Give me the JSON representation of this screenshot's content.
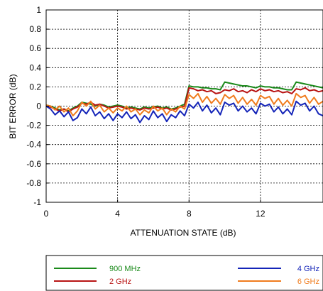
{
  "chart_data": {
    "type": "line",
    "title": "",
    "xlabel": "ATTENUATION STATE (dB)",
    "ylabel": "BIT ERROR (dB)",
    "xlim": [
      0,
      15.5
    ],
    "ylim": [
      -1,
      1
    ],
    "xticks": [
      0,
      4,
      8,
      12
    ],
    "xtick_labels": [
      "0",
      "4",
      "8",
      "12"
    ],
    "yticks": [
      1,
      0.8,
      0.6,
      0.4,
      0.2,
      0,
      -0.2,
      -0.4,
      -0.6,
      -0.8,
      -1
    ],
    "ytick_labels": [
      "1",
      "0.8",
      "0.6",
      "0.4",
      "0.2",
      "0",
      "-0.2",
      "-0.4",
      "-0.6",
      "-0.8",
      "-1"
    ],
    "grid": true,
    "legend_position": "bottom",
    "x": [
      0,
      0.25,
      0.5,
      0.75,
      1,
      1.25,
      1.5,
      1.75,
      2,
      2.25,
      2.5,
      2.75,
      3,
      3.25,
      3.5,
      3.75,
      4,
      4.25,
      4.5,
      4.75,
      5,
      5.25,
      5.5,
      5.75,
      6,
      6.25,
      6.5,
      6.75,
      7,
      7.25,
      7.5,
      7.75,
      8,
      8.25,
      8.5,
      8.75,
      9,
      9.25,
      9.5,
      9.75,
      10,
      10.25,
      10.5,
      10.75,
      11,
      11.25,
      11.5,
      11.75,
      12,
      12.25,
      12.5,
      12.75,
      13,
      13.25,
      13.5,
      13.75,
      14,
      14.25,
      14.5,
      14.75,
      15,
      15.25,
      15.5
    ],
    "series": [
      {
        "name": "900 MHz",
        "color": "#1a8a1a",
        "values": [
          0.01,
          0.0,
          -0.02,
          -0.04,
          -0.03,
          -0.05,
          -0.02,
          0.0,
          0.04,
          0.03,
          0.02,
          0.0,
          0.02,
          0.01,
          -0.01,
          0.0,
          0.01,
          0.0,
          -0.02,
          -0.01,
          -0.02,
          -0.03,
          -0.01,
          -0.02,
          -0.01,
          0.0,
          -0.02,
          -0.01,
          -0.03,
          -0.02,
          0.0,
          0.02,
          0.21,
          0.2,
          0.2,
          0.19,
          0.19,
          0.18,
          0.18,
          0.17,
          0.25,
          0.24,
          0.23,
          0.22,
          0.21,
          0.21,
          0.2,
          0.19,
          0.21,
          0.2,
          0.2,
          0.19,
          0.19,
          0.18,
          0.17,
          0.17,
          0.25,
          0.24,
          0.23,
          0.22,
          0.21,
          0.2,
          0.19
        ]
      },
      {
        "name": "2 GHz",
        "color": "#b81414",
        "values": [
          0.0,
          -0.01,
          -0.03,
          -0.05,
          -0.03,
          -0.06,
          -0.03,
          -0.01,
          0.03,
          0.02,
          0.04,
          0.01,
          0.02,
          0.0,
          -0.02,
          -0.01,
          0.0,
          -0.01,
          -0.03,
          -0.02,
          -0.03,
          -0.04,
          -0.02,
          -0.03,
          -0.02,
          -0.01,
          -0.03,
          -0.02,
          -0.04,
          -0.03,
          -0.01,
          0.0,
          0.19,
          0.18,
          0.16,
          0.17,
          0.15,
          0.16,
          0.13,
          0.14,
          0.17,
          0.16,
          0.18,
          0.15,
          0.16,
          0.14,
          0.17,
          0.15,
          0.18,
          0.16,
          0.17,
          0.15,
          0.16,
          0.14,
          0.15,
          0.13,
          0.18,
          0.17,
          0.19,
          0.16,
          0.17,
          0.15,
          0.16
        ]
      },
      {
        "name": "4 GHz",
        "color": "#1424b8",
        "values": [
          0.0,
          -0.03,
          -0.09,
          -0.05,
          -0.11,
          -0.06,
          -0.15,
          -0.12,
          -0.03,
          -0.08,
          -0.01,
          -0.1,
          -0.06,
          -0.13,
          -0.08,
          -0.15,
          -0.08,
          -0.12,
          -0.06,
          -0.13,
          -0.09,
          -0.17,
          -0.1,
          -0.14,
          -0.05,
          -0.12,
          -0.08,
          -0.16,
          -0.09,
          -0.12,
          -0.05,
          -0.1,
          0.02,
          -0.02,
          0.04,
          -0.05,
          0.01,
          -0.07,
          -0.02,
          -0.09,
          0.04,
          0.01,
          0.03,
          -0.05,
          0.0,
          -0.06,
          -0.02,
          -0.08,
          0.03,
          0.0,
          0.02,
          -0.06,
          -0.01,
          -0.08,
          -0.03,
          -0.09,
          0.05,
          0.01,
          0.03,
          -0.05,
          0.0,
          -0.08,
          -0.1
        ]
      },
      {
        "name": "6 GHz",
        "color": "#f07c1e",
        "values": [
          0.01,
          0.0,
          -0.04,
          0.0,
          -0.06,
          -0.02,
          -0.1,
          -0.05,
          0.04,
          0.0,
          0.05,
          -0.03,
          0.01,
          -0.06,
          -0.02,
          -0.07,
          -0.02,
          -0.05,
          0.0,
          -0.06,
          -0.03,
          -0.09,
          -0.04,
          -0.07,
          0.0,
          -0.05,
          -0.02,
          -0.09,
          -0.03,
          -0.06,
          0.0,
          -0.03,
          0.12,
          0.08,
          0.13,
          0.04,
          0.1,
          0.03,
          0.08,
          0.02,
          0.12,
          0.08,
          0.11,
          0.03,
          0.09,
          0.02,
          0.07,
          0.01,
          0.11,
          0.08,
          0.1,
          0.02,
          0.08,
          0.01,
          0.06,
          0.0,
          0.13,
          0.09,
          0.11,
          0.03,
          0.09,
          0.02,
          0.05
        ]
      }
    ]
  }
}
